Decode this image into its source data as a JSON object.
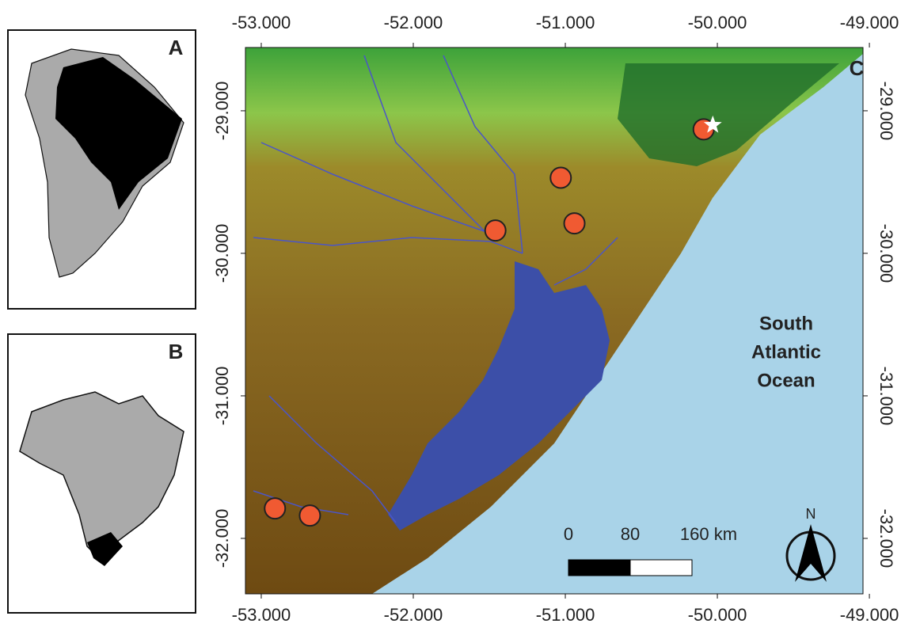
{
  "panels": {
    "a": {
      "label": "A"
    },
    "b": {
      "label": "B"
    },
    "c": {
      "label": "C"
    }
  },
  "map": {
    "xlim": [
      -53.104,
      -49.042
    ],
    "ylim": [
      -32.389,
      -28.556
    ],
    "xticks": [
      {
        "value": -53,
        "label": "-53.000"
      },
      {
        "value": -52,
        "label": "-52.000"
      },
      {
        "value": -51,
        "label": "-51.000"
      },
      {
        "value": -50,
        "label": "-50.000"
      },
      {
        "value": -49,
        "label": "-49.000"
      }
    ],
    "yticks": [
      {
        "value": -29,
        "label": "-29.000"
      },
      {
        "value": -30,
        "label": "-30.000"
      },
      {
        "value": -31,
        "label": "-31.000"
      },
      {
        "value": -32,
        "label": "-32.000"
      }
    ],
    "ocean_label": [
      "South",
      "Atlantic",
      "Ocean"
    ],
    "sites": {
      "lon": [
        -51.03,
        -51.46,
        -50.94,
        -52.91,
        -52.68,
        -50.09
      ],
      "lat": [
        -29.47,
        -29.84,
        -29.79,
        -31.79,
        -31.84,
        -29.13
      ],
      "color": "#f05a32"
    },
    "type_locality": {
      "lon": -50.03,
      "lat": -29.1,
      "color": "#ffffff"
    },
    "scale_bar": {
      "labels": [
        "0",
        "80",
        "160 km"
      ]
    },
    "north_label": "N"
  }
}
